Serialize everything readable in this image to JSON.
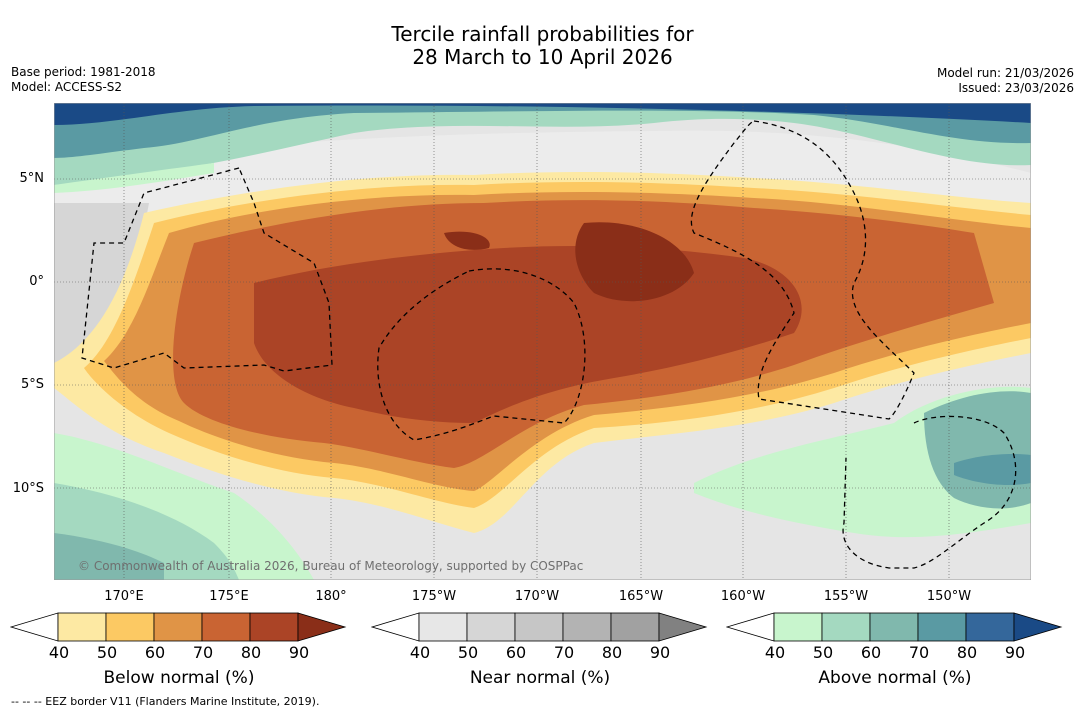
{
  "title": {
    "line1": "Tercile rainfall probabilities for",
    "line2": "28 March to 10 April 2026"
  },
  "meta": {
    "base_period": "Base period: 1981-2018",
    "model": "Model: ACCESS-S2",
    "model_run": "Model run: 21/03/2026",
    "issued": "Issued: 23/03/2026"
  },
  "map": {
    "latitude_labels": [
      "5°N",
      "0°",
      "5°S",
      "10°S"
    ],
    "longitude_labels": [
      "170°E",
      "175°E",
      "180°",
      "175°W",
      "170°W",
      "165°W",
      "160°W",
      "155°W",
      "150°W"
    ],
    "copyright": "© Commonwealth of Australia 2026, Bureau of Meteorology, supported by COSPPac"
  },
  "colorbars": [
    {
      "title": "Below normal (%)",
      "ticks": [
        "40",
        "50",
        "60",
        "70",
        "80",
        "90"
      ],
      "colors": [
        "#ffffff",
        "#fde9a3",
        "#fcc963",
        "#e09446",
        "#c96433",
        "#ab4426",
        "#8a2e18"
      ]
    },
    {
      "title": "Near normal (%)",
      "ticks": [
        "40",
        "50",
        "60",
        "70",
        "80",
        "90"
      ],
      "colors": [
        "#ffffff",
        "#e7e7e7",
        "#d6d6d6",
        "#c6c6c6",
        "#b3b3b3",
        "#a1a1a1",
        "#818181"
      ]
    },
    {
      "title": "Above normal (%)",
      "ticks": [
        "40",
        "50",
        "60",
        "70",
        "80",
        "90"
      ],
      "colors": [
        "#ffffff",
        "#c8f5cd",
        "#a4d9c0",
        "#80b8ad",
        "#5a9aa3",
        "#34679b",
        "#1a4a86"
      ]
    }
  ],
  "legend": {
    "eez_note": "--  --  -- EEZ border V11 (Flanders Marine Institute, 2019)."
  }
}
